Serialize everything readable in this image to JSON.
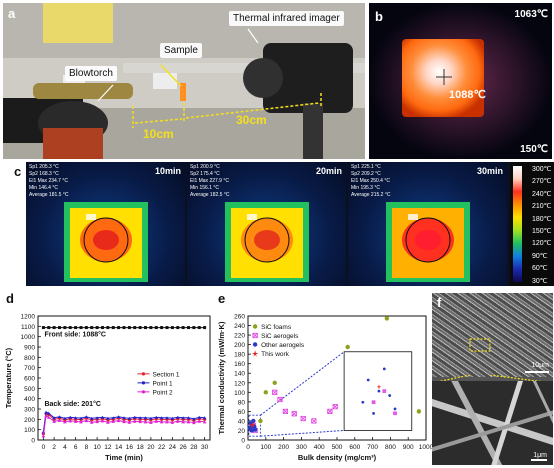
{
  "panel_a": {
    "label": "a",
    "blowtorch": "Blowtorch",
    "sample": "Sample",
    "imager": "Thermal infrared imager",
    "dist1": "10cm",
    "dist2": "30cm"
  },
  "panel_b": {
    "label": "b",
    "max_temp": "1063℃",
    "min_temp": "150℃",
    "center_temp": "1088℃"
  },
  "panel_c": {
    "label": "c",
    "scale_unit": "300℃",
    "scale_ticks": [
      "300℃",
      "270℃",
      "240℃",
      "210℃",
      "180℃",
      "150℃",
      "120℃",
      "90℃",
      "60℃",
      "30℃"
    ],
    "panels": [
      {
        "time": "10min",
        "sp1": "205.3 °C",
        "sp2": "168.3 °C",
        "max": "234.7 °C",
        "min": "146.4 °C",
        "avg": "181.5 °C"
      },
      {
        "time": "20min",
        "sp1": "200.9 °C",
        "sp2": "175.4 °C",
        "max": "227.9 °C",
        "min": "156.1 °C",
        "avg": "182.5 °C"
      },
      {
        "time": "30min",
        "sp1": "225.1 °C",
        "sp2": "209.2 °C",
        "max": "250.4 °C",
        "min": "195.3 °C",
        "avg": "215.2 °C"
      }
    ],
    "row_labels": {
      "sp1": "Sp1",
      "sp2": "Sp2",
      "el1": "El1",
      "max": "Max",
      "min": "Min",
      "avg": "Average"
    }
  },
  "chart_data": [
    {
      "type": "line",
      "label": "d",
      "xlabel": "Time (min)",
      "ylabel": "Temperature (°C)",
      "xlim": [
        -1,
        31
      ],
      "ylim": [
        0,
        1200
      ],
      "xticks": [
        0,
        2,
        4,
        6,
        8,
        10,
        12,
        14,
        16,
        18,
        20,
        22,
        24,
        26,
        28,
        30
      ],
      "yticks": [
        0,
        100,
        200,
        300,
        400,
        500,
        600,
        700,
        800,
        900,
        1000,
        1100,
        1200
      ],
      "annotations": [
        "Front side: 1088°C",
        "Back side: 201°C"
      ],
      "legend": "right",
      "series": [
        {
          "name": "Section 1",
          "color": "#e8202a",
          "x": [
            0,
            0.5,
            1,
            2,
            3,
            4,
            5,
            6,
            7,
            8,
            9,
            10,
            11,
            12,
            13,
            14,
            15,
            16,
            17,
            18,
            19,
            20,
            21,
            22,
            23,
            24,
            25,
            26,
            27,
            28,
            29,
            30
          ],
          "y": [
            60,
            255,
            245,
            200,
            210,
            195,
            205,
            200,
            198,
            210,
            195,
            200,
            205,
            195,
            200,
            210,
            200,
            195,
            205,
            200,
            200,
            195,
            205,
            200,
            200,
            195,
            205,
            200,
            200,
            190,
            205,
            200
          ]
        },
        {
          "name": "Point 1",
          "color": "#2222cc",
          "x": [
            0,
            0.5,
            1,
            2,
            3,
            4,
            5,
            6,
            7,
            8,
            9,
            10,
            11,
            12,
            13,
            14,
            15,
            16,
            17,
            18,
            19,
            20,
            21,
            22,
            23,
            24,
            25,
            26,
            27,
            28,
            29,
            30
          ],
          "y": [
            80,
            270,
            260,
            215,
            225,
            210,
            220,
            215,
            212,
            225,
            210,
            215,
            220,
            210,
            215,
            225,
            215,
            210,
            220,
            215,
            215,
            210,
            220,
            215,
            215,
            210,
            220,
            215,
            215,
            205,
            220,
            215
          ]
        },
        {
          "name": "Point 2",
          "color": "#e020d0",
          "x": [
            0,
            0.5,
            1,
            2,
            3,
            4,
            5,
            6,
            7,
            8,
            9,
            10,
            11,
            12,
            13,
            14,
            15,
            16,
            17,
            18,
            19,
            20,
            21,
            22,
            23,
            24,
            25,
            26,
            27,
            28,
            29,
            30
          ],
          "y": [
            40,
            235,
            220,
            180,
            190,
            175,
            185,
            180,
            175,
            188,
            172,
            178,
            185,
            172,
            180,
            188,
            178,
            172,
            182,
            178,
            176,
            170,
            182,
            176,
            176,
            170,
            182,
            176,
            176,
            168,
            182,
            176
          ]
        },
        {
          "name": "",
          "color": "#111111",
          "x": [
            0,
            1,
            2,
            3,
            4,
            5,
            6,
            7,
            8,
            9,
            10,
            11,
            12,
            13,
            14,
            15,
            16,
            17,
            18,
            19,
            20,
            21,
            22,
            23,
            24,
            25,
            26,
            27,
            28,
            29,
            30
          ],
          "y": [
            1088,
            1088,
            1088,
            1088,
            1088,
            1088,
            1088,
            1088,
            1088,
            1088,
            1088,
            1088,
            1088,
            1088,
            1088,
            1088,
            1088,
            1088,
            1088,
            1088,
            1088,
            1088,
            1088,
            1088,
            1088,
            1088,
            1088,
            1088,
            1088,
            1088,
            1088
          ]
        }
      ]
    },
    {
      "type": "scatter",
      "label": "e",
      "xlabel": "Bulk density (mg/cm³)",
      "ylabel": "Thermal conductivity (mW/m·K)",
      "xlim": [
        0,
        1000
      ],
      "ylim": [
        0,
        260
      ],
      "xticks": [
        0,
        100,
        200,
        300,
        400,
        500,
        600,
        700,
        800,
        900,
        1000
      ],
      "yticks": [
        0,
        20,
        40,
        60,
        80,
        100,
        120,
        140,
        160,
        180,
        200,
        220,
        240,
        260
      ],
      "legend": "top-left",
      "series": [
        {
          "name": "SiC foams",
          "color": "#8aa21e",
          "marker": "circle",
          "x": [
            70,
            100,
            150,
            560,
            780,
            960
          ],
          "y": [
            40,
            100,
            120,
            195,
            255,
            60
          ]
        },
        {
          "name": "SiC aerogels",
          "color": "#e040e0",
          "marker": "x",
          "x": [
            20,
            30,
            40,
            150,
            180,
            210,
            260,
            310,
            370,
            460,
            490
          ],
          "y": [
            25,
            30,
            20,
            100,
            85,
            60,
            55,
            45,
            40,
            60,
            70
          ]
        },
        {
          "name": "Other aerogels",
          "color": "#2a3ac8",
          "marker": "circle",
          "x": [
            10,
            15,
            20,
            25,
            30,
            35,
            40
          ],
          "y": [
            25,
            35,
            20,
            30,
            40,
            28,
            22
          ]
        },
        {
          "name": "This work",
          "color": "#e82020",
          "marker": "star",
          "x": [
            25
          ],
          "y": [
            32
          ]
        }
      ]
    }
  ],
  "panel_f": {
    "label": "f",
    "scale1": "10μm",
    "scale2": "1μm"
  }
}
